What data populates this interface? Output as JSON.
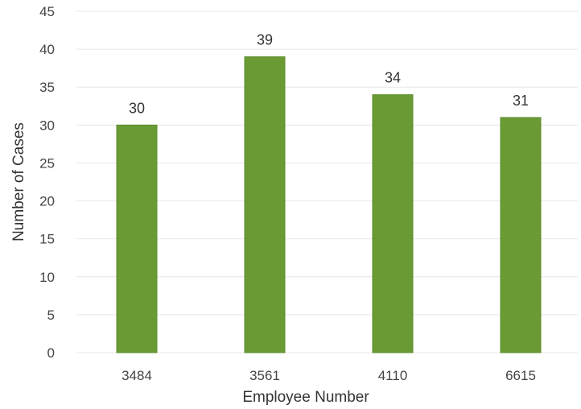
{
  "chart_data": {
    "type": "bar",
    "categories": [
      "3484",
      "3561",
      "4110",
      "6615"
    ],
    "values": [
      30,
      39,
      34,
      31
    ],
    "data_labels": [
      "30",
      "39",
      "34",
      "31"
    ],
    "title": "",
    "xlabel": "Employee Number",
    "ylabel": "Number of Cases",
    "ylim": [
      0,
      45
    ],
    "yticks": [
      "0",
      "5",
      "10",
      "15",
      "20",
      "25",
      "30",
      "35",
      "40",
      "45"
    ],
    "grid": true,
    "legend": "none",
    "colors": {
      "bar": "#6a9a34",
      "bar_edge": "#5e8c2c"
    }
  }
}
